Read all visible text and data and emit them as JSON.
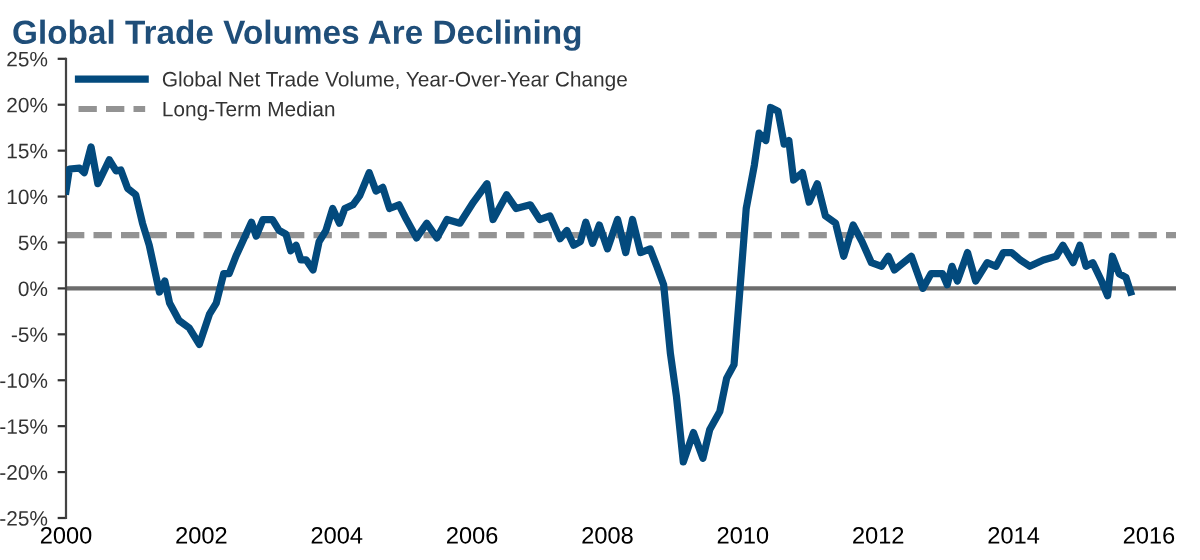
{
  "chart_data": {
    "type": "line",
    "title": "Global Trade Volumes Are Declining",
    "x": [
      2000.0,
      2000.05,
      2000.2,
      2000.27,
      2000.37,
      2000.47,
      2000.64,
      2000.74,
      2000.81,
      2000.91,
      2001.03,
      2001.13,
      2001.23,
      2001.38,
      2001.46,
      2001.53,
      2001.67,
      2001.82,
      2001.97,
      2002.12,
      2002.22,
      2002.33,
      2002.41,
      2002.51,
      2002.61,
      2002.74,
      2002.81,
      2002.91,
      2003.05,
      2003.15,
      2003.25,
      2003.32,
      2003.4,
      2003.47,
      2003.55,
      2003.65,
      2003.74,
      2003.84,
      2003.94,
      2004.04,
      2004.12,
      2004.24,
      2004.34,
      2004.48,
      2004.58,
      2004.68,
      2004.78,
      2004.92,
      2005.03,
      2005.18,
      2005.33,
      2005.48,
      2005.63,
      2005.82,
      2006.02,
      2006.22,
      2006.31,
      2006.51,
      2006.65,
      2006.86,
      2007.0,
      2007.15,
      2007.3,
      2007.4,
      2007.5,
      2007.6,
      2007.68,
      2007.78,
      2007.88,
      2008.0,
      2008.15,
      2008.27,
      2008.37,
      2008.49,
      2008.63,
      2008.73,
      2008.83,
      2008.93,
      2009.02,
      2009.12,
      2009.27,
      2009.41,
      2009.51,
      2009.66,
      2009.76,
      2009.87,
      2009.95,
      2010.05,
      2010.17,
      2010.24,
      2010.34,
      2010.41,
      2010.52,
      2010.61,
      2010.68,
      2010.75,
      2010.88,
      2010.98,
      2011.1,
      2011.22,
      2011.37,
      2011.49,
      2011.63,
      2011.76,
      2011.9,
      2012.05,
      2012.15,
      2012.24,
      2012.49,
      2012.66,
      2012.78,
      2012.95,
      2013.02,
      2013.09,
      2013.17,
      2013.32,
      2013.44,
      2013.61,
      2013.74,
      2013.85,
      2013.97,
      2014.1,
      2014.24,
      2014.44,
      2014.63,
      2014.73,
      2014.88,
      2014.98,
      2015.07,
      2015.17,
      2015.3,
      2015.39,
      2015.46,
      2015.56,
      2015.66,
      2015.73
    ],
    "series": [
      {
        "name": "Global Net Trade Volume, Year-Over-Year Change",
        "color": "#034a7d",
        "values": [
          10.6,
          13.0,
          13.1,
          12.6,
          15.4,
          11.4,
          14.0,
          12.8,
          12.9,
          10.9,
          10.2,
          7.1,
          4.7,
          -0.4,
          0.8,
          -1.6,
          -3.5,
          -4.3,
          -6.1,
          -2.8,
          -1.6,
          1.6,
          1.6,
          3.5,
          5.1,
          7.2,
          5.7,
          7.5,
          7.5,
          6.3,
          5.9,
          4.1,
          4.7,
          3.1,
          3.1,
          2.0,
          5.1,
          6.3,
          8.7,
          7.1,
          8.7,
          9.1,
          10.1,
          12.6,
          10.6,
          11.0,
          8.7,
          9.1,
          7.5,
          5.5,
          7.1,
          5.5,
          7.5,
          7.1,
          9.4,
          11.4,
          7.5,
          10.2,
          8.7,
          9.1,
          7.5,
          7.9,
          5.4,
          6.3,
          4.7,
          5.1,
          7.2,
          4.9,
          6.9,
          4.3,
          7.5,
          3.9,
          7.5,
          3.9,
          4.3,
          2.4,
          0.4,
          -7.1,
          -11.8,
          -18.9,
          -15.7,
          -18.5,
          -15.4,
          -13.4,
          -9.8,
          -8.3,
          -0.8,
          8.7,
          13.4,
          16.9,
          16.1,
          19.7,
          19.3,
          15.7,
          16.1,
          11.8,
          12.6,
          9.4,
          11.4,
          7.9,
          7.1,
          3.5,
          6.9,
          5.1,
          2.8,
          2.4,
          3.5,
          2.0,
          3.5,
          0.0,
          1.6,
          1.6,
          0.4,
          2.4,
          0.8,
          3.9,
          0.8,
          2.8,
          2.4,
          3.9,
          3.9,
          3.1,
          2.4,
          3.1,
          3.5,
          4.7,
          2.8,
          4.7,
          2.4,
          2.8,
          0.8,
          -0.8,
          3.5,
          1.6,
          1.2,
          -0.4
        ]
      }
    ],
    "ref_lines": [
      {
        "axis": "y",
        "value": 0,
        "color": "#6d6d6d",
        "line_style": "solid"
      },
      {
        "axis": "y",
        "value": 5.8,
        "label": "Long-Term Median",
        "color": "#939393",
        "line_style": "dashed"
      }
    ],
    "xlim": [
      2000,
      2016.4
    ],
    "xticks": [
      2000,
      2002,
      2004,
      2006,
      2008,
      2010,
      2012,
      2014,
      2016
    ],
    "ylim": [
      -25,
      25
    ],
    "yticks": [
      {
        "value": -25,
        "label": "-25%"
      },
      {
        "value": -20,
        "label": "-20%"
      },
      {
        "value": -15,
        "label": "-15%"
      },
      {
        "value": -10,
        "label": "-10%"
      },
      {
        "value": -5,
        "label": "-5%"
      },
      {
        "value": 0,
        "label": "0%"
      },
      {
        "value": 5,
        "label": "5%"
      },
      {
        "value": 10,
        "label": "10%"
      },
      {
        "value": 15,
        "label": "15%"
      },
      {
        "value": 20,
        "label": "20%"
      },
      {
        "value": 25,
        "label": "25%"
      }
    ],
    "grid": false,
    "legend": "top left",
    "marker": "none",
    "line_style": "solid"
  }
}
